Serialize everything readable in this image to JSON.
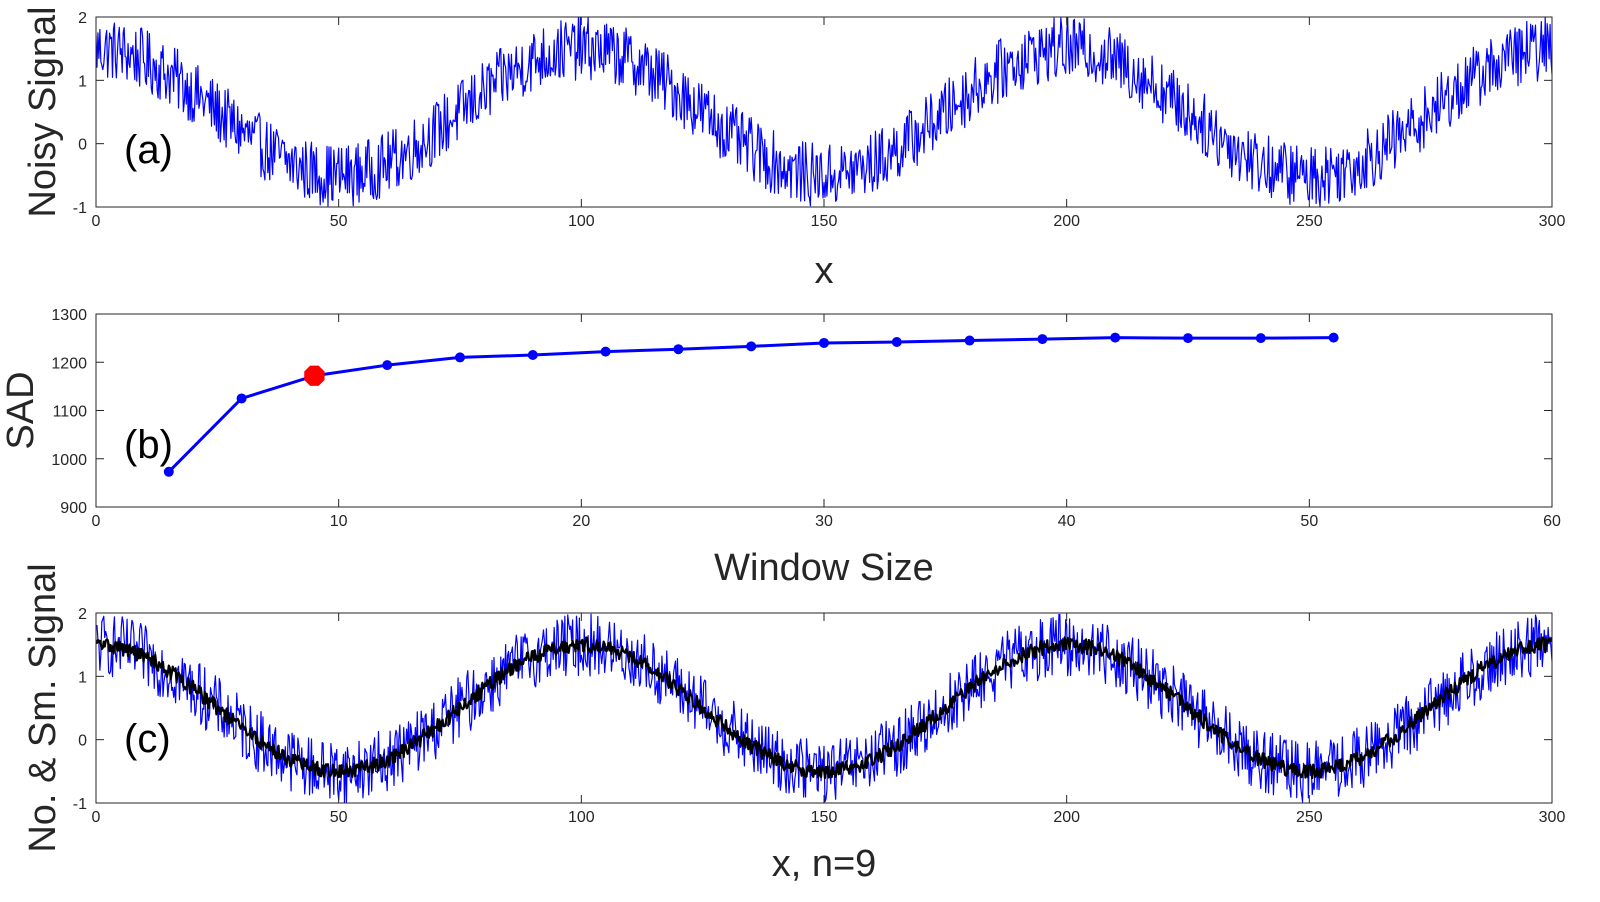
{
  "colors": {
    "noisy": "#0000ff",
    "smoothed": "#000000",
    "sad_line": "#0000ff",
    "highlight": "#ff0000",
    "axes": "#262626"
  },
  "chart_data": [
    {
      "type": "line",
      "panel_label": "(a)",
      "title": "",
      "xlabel": "x",
      "ylabel": "Noisy Signal",
      "xlim": [
        0,
        300
      ],
      "ylim": [
        -1,
        2
      ],
      "xticks": [
        0,
        50,
        100,
        150,
        200,
        250,
        300
      ],
      "yticks": [
        -1,
        0,
        1,
        2
      ],
      "grid": false,
      "series": [
        {
          "color": "#0000ff",
          "signal": {
            "offset": 0.5,
            "amplitude": 1.0,
            "period": 100,
            "phase": "cos",
            "noise_band": 0.5
          }
        }
      ]
    },
    {
      "type": "line",
      "panel_label": "(b)",
      "title": "",
      "xlabel": "Window Size",
      "ylabel": "SAD",
      "xlim": [
        0,
        60
      ],
      "ylim": [
        900,
        1300
      ],
      "xticks": [
        0,
        10,
        20,
        30,
        40,
        50,
        60
      ],
      "yticks": [
        900,
        1000,
        1100,
        1200,
        1300
      ],
      "grid": false,
      "x": [
        3,
        6,
        9,
        12,
        15,
        18,
        21,
        24,
        27,
        30,
        33,
        36,
        39,
        42,
        45,
        48,
        51
      ],
      "series": [
        {
          "color": "#0000ff",
          "values": [
            973,
            1125,
            1172,
            1194,
            1210,
            1215,
            1222,
            1227,
            1233,
            1240,
            1242,
            1245,
            1248,
            1251,
            1250,
            1250,
            1251
          ]
        }
      ],
      "highlight": {
        "x": 9,
        "y": 1172,
        "color": "#ff0000"
      }
    },
    {
      "type": "line",
      "panel_label": "(c)",
      "title": "",
      "xlabel": "x, n=9",
      "ylabel": "No. & Sm. Signal",
      "xlim": [
        0,
        300
      ],
      "ylim": [
        -1,
        2
      ],
      "xticks": [
        0,
        50,
        100,
        150,
        200,
        250,
        300
      ],
      "yticks": [
        -1,
        0,
        1,
        2
      ],
      "grid": false,
      "series": [
        {
          "color": "#0000ff",
          "signal": {
            "offset": 0.5,
            "amplitude": 1.0,
            "period": 100,
            "phase": "cos",
            "noise_band": 0.5
          }
        },
        {
          "color": "#000000",
          "signal": {
            "offset": 0.5,
            "amplitude": 1.0,
            "period": 100,
            "phase": "cos",
            "noise_band": 0.12
          }
        }
      ]
    }
  ]
}
